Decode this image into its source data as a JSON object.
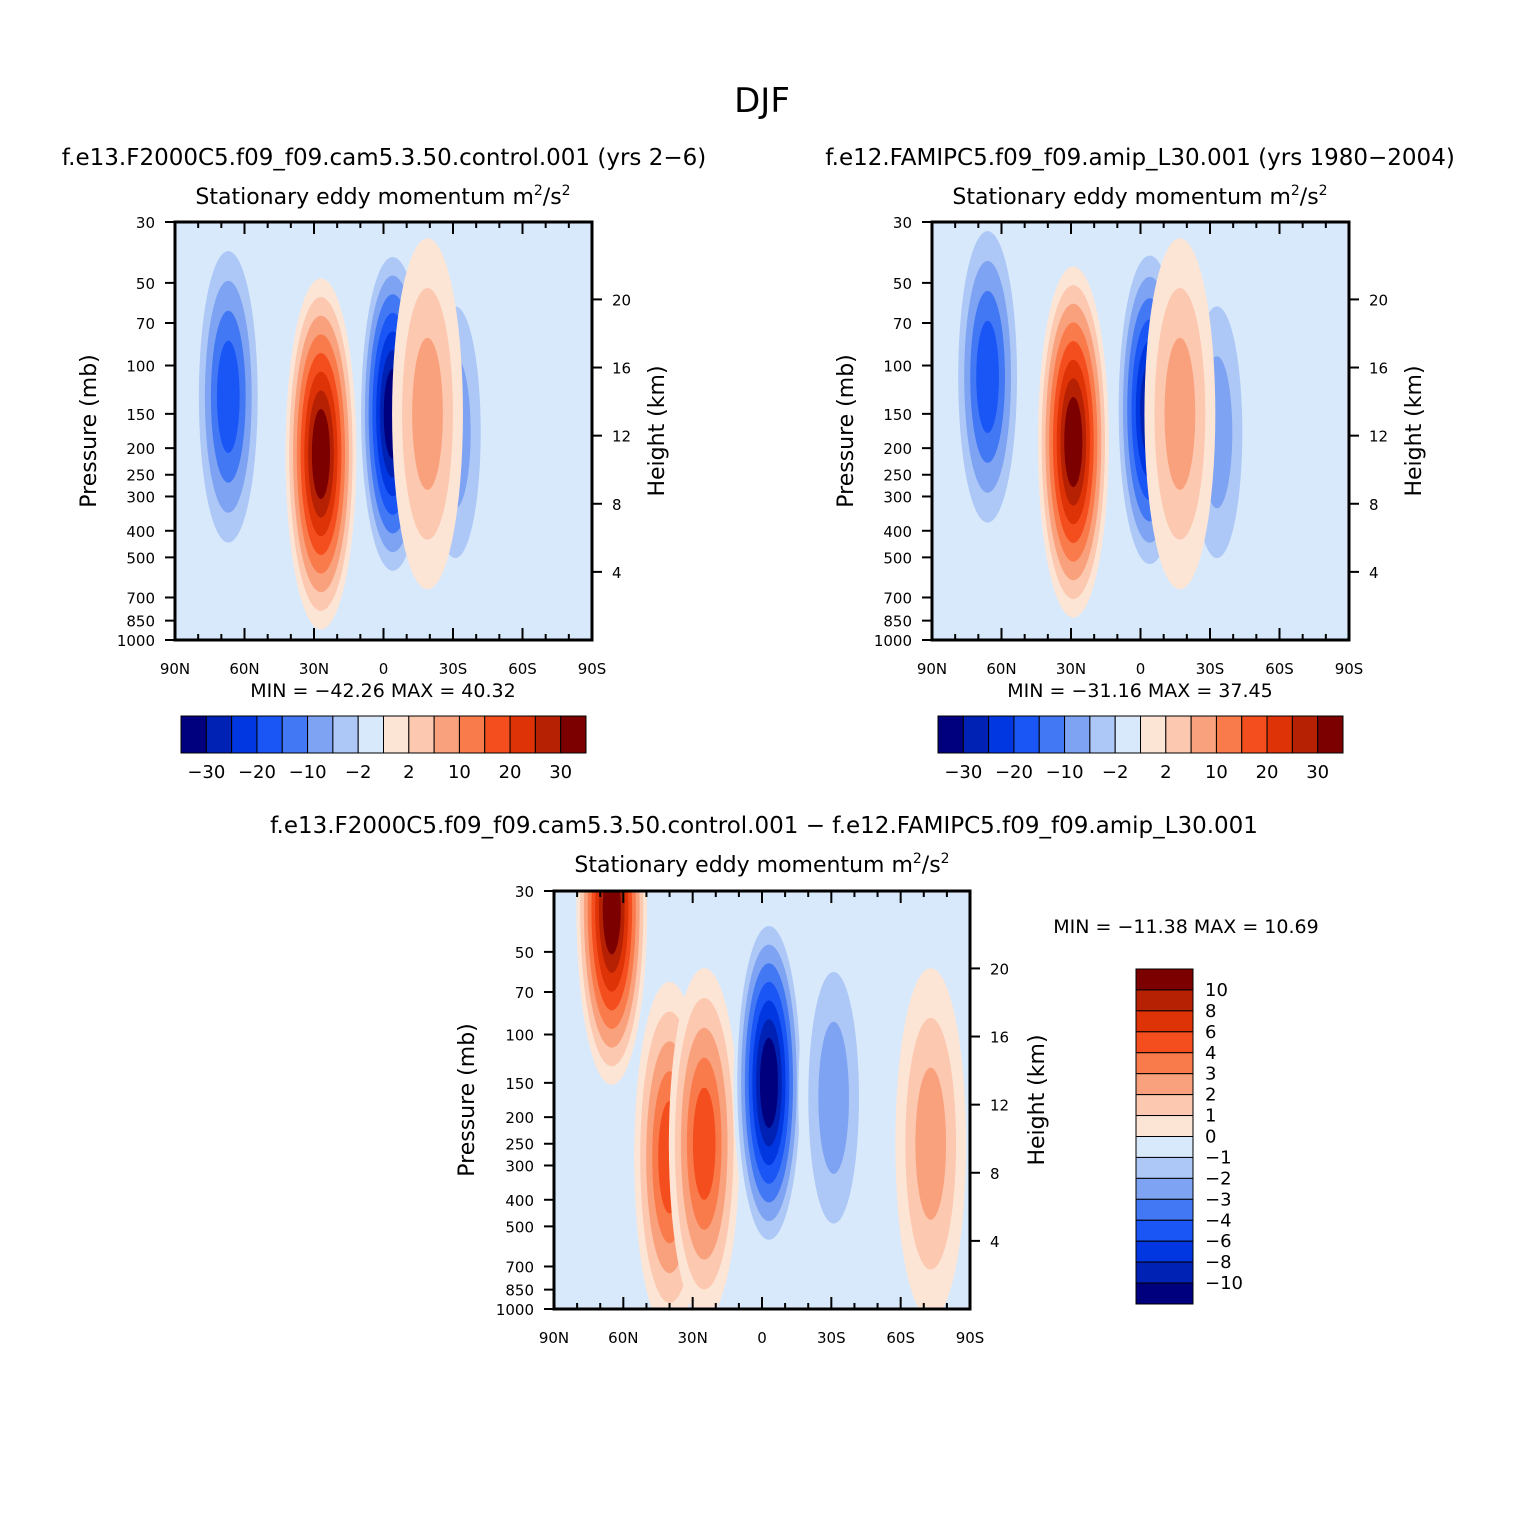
{
  "figure_title": "DJF",
  "colors": {
    "levels_15": [
      "#00007f",
      "#0022b4",
      "#0037e0",
      "#1a55f5",
      "#4378f5",
      "#7ea3f2",
      "#adc8f6",
      "#d8e9fb",
      "#fde5d6",
      "#fcc8b0",
      "#f9a17c",
      "#f97b4c",
      "#f44e1e",
      "#dd3306",
      "#b62003",
      "#7c0000"
    ],
    "diff": [
      "#00007f",
      "#0022b4",
      "#0037e0",
      "#1a55f5",
      "#4378f5",
      "#7ea3f2",
      "#adc8f6",
      "#d8e9fb",
      "#fde5d6",
      "#fcc8b0",
      "#f9a17c",
      "#f97b4c",
      "#f44e1e",
      "#dd3306",
      "#b62003",
      "#7c0000"
    ]
  },
  "chart_data": [
    {
      "type": "heatmap",
      "case": "f.e13.F2000C5.f09_f09.cam5.3.50.control.001  (yrs  2−6)",
      "title": "Stationary  eddy  momentum",
      "units_base": "m",
      "units_mid": "/s",
      "units_exp": "2",
      "ylabel": "Pressure  (mb)",
      "ylabel_right": "Height  (km)",
      "x_ticks": [
        "90N",
        "60N",
        "30N",
        "0",
        "30S",
        "60S",
        "90S"
      ],
      "x_range": [
        90,
        -90
      ],
      "y_ticks": [
        "30",
        "50",
        "70",
        "100",
        "150",
        "200",
        "250",
        "300",
        "400",
        "500",
        "700",
        "850",
        "1000"
      ],
      "y_range_mb": [
        30,
        1000
      ],
      "y_scale": "log",
      "height_ticks": [
        "20",
        "16",
        "12",
        "8",
        "4"
      ],
      "min_label": "MIN  =",
      "min_value": "−42.26",
      "max_label": "MAX  =",
      "max_value": "40.32",
      "colorbar_levels": [
        -30,
        -25,
        -20,
        -15,
        -10,
        -5,
        -2,
        0,
        2,
        5,
        10,
        15,
        20,
        25,
        30
      ],
      "colorbar_tick_labels": [
        "−30",
        "−20",
        "−10",
        "−2",
        "2",
        "10",
        "20",
        "30"
      ],
      "features": [
        {
          "lat": 67,
          "p": 130,
          "value": -16
        },
        {
          "lat": 27,
          "p": 210,
          "value": 38
        },
        {
          "lat": -4,
          "p": 150,
          "value": -40
        },
        {
          "lat": -31,
          "p": 175,
          "value": -9
        },
        {
          "lat": -19,
          "p": 150,
          "value": 7
        }
      ]
    },
    {
      "type": "heatmap",
      "case": "f.e12.FAMIPC5.f09_f09.amip_L30.001  (yrs  1980−2004)",
      "title": "Stationary  eddy  momentum",
      "units_base": "m",
      "units_mid": "/s",
      "units_exp": "2",
      "ylabel": "Pressure  (mb)",
      "ylabel_right": "Height  (km)",
      "x_ticks": [
        "90N",
        "60N",
        "30N",
        "0",
        "30S",
        "60S",
        "90S"
      ],
      "x_range": [
        90,
        -90
      ],
      "y_ticks": [
        "30",
        "50",
        "70",
        "100",
        "150",
        "200",
        "250",
        "300",
        "400",
        "500",
        "700",
        "850",
        "1000"
      ],
      "y_range_mb": [
        30,
        1000
      ],
      "y_scale": "log",
      "height_ticks": [
        "20",
        "16",
        "12",
        "8",
        "4"
      ],
      "min_label": "MIN  =",
      "min_value": "−31.16",
      "max_label": "MAX  =",
      "max_value": "37.45",
      "colorbar_levels": [
        -30,
        -25,
        -20,
        -15,
        -10,
        -5,
        -2,
        0,
        2,
        5,
        10,
        15,
        20,
        25,
        30
      ],
      "colorbar_tick_labels": [
        "−30",
        "−20",
        "−10",
        "−2",
        "2",
        "10",
        "20",
        "30"
      ],
      "features": [
        {
          "lat": 66,
          "p": 110,
          "value": -18
        },
        {
          "lat": 29,
          "p": 190,
          "value": 36
        },
        {
          "lat": -4,
          "p": 145,
          "value": -30
        },
        {
          "lat": -33,
          "p": 175,
          "value": -8
        },
        {
          "lat": -17,
          "p": 150,
          "value": 6
        }
      ]
    },
    {
      "type": "heatmap",
      "case": "f.e13.F2000C5.f09_f09.cam5.3.50.control.001  −  f.e12.FAMIPC5.f09_f09.amip_L30.001",
      "title": "Stationary  eddy  momentum",
      "units_base": "m",
      "units_mid": "/s",
      "units_exp": "2",
      "ylabel": "Pressure  (mb)",
      "ylabel_right": "Height  (km)",
      "x_ticks": [
        "90N",
        "60N",
        "30N",
        "0",
        "30S",
        "60S",
        "90S"
      ],
      "x_range": [
        90,
        -90
      ],
      "y_ticks": [
        "30",
        "50",
        "70",
        "100",
        "150",
        "200",
        "250",
        "300",
        "400",
        "500",
        "700",
        "850",
        "1000"
      ],
      "y_range_mb": [
        30,
        1000
      ],
      "y_scale": "log",
      "height_ticks": [
        "20",
        "16",
        "12",
        "8",
        "4"
      ],
      "min_label": "MIN  =",
      "min_value": "−11.38",
      "max_label": "MAX  =",
      "max_value": "10.69",
      "colorbar_levels": [
        -10,
        -8,
        -6,
        -4,
        -3,
        -2,
        -1,
        0,
        1,
        2,
        3,
        4,
        6,
        8,
        10
      ],
      "colorbar_tick_labels": [
        "10",
        "8",
        "6",
        "4",
        "3",
        "2",
        "1",
        "0",
        "−1",
        "−2",
        "−3",
        "−4",
        "−6",
        "−8",
        "−10"
      ],
      "features": [
        {
          "lat": 65,
          "p": 35,
          "value": 10
        },
        {
          "lat": 40,
          "p": 280,
          "value": 4
        },
        {
          "lat": 25,
          "p": 250,
          "value": 5
        },
        {
          "lat": -3,
          "p": 150,
          "value": -11
        },
        {
          "lat": -31,
          "p": 170,
          "value": -3
        },
        {
          "lat": -73,
          "p": 250,
          "value": 2
        }
      ]
    }
  ]
}
